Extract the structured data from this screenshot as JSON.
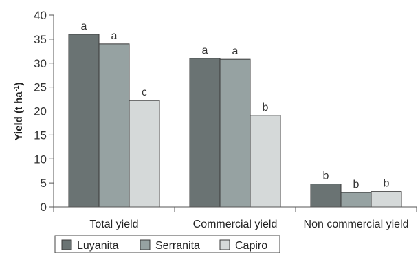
{
  "chart_data": {
    "type": "bar",
    "ylabel": "Yield (t ha",
    "ylabel_sup": "-1",
    "ylabel_close": ")",
    "ylim": [
      0,
      40
    ],
    "yticks": [
      0,
      5,
      10,
      15,
      20,
      25,
      30,
      35,
      40
    ],
    "categories": [
      "Total yield",
      "Commercial yield",
      "Non commercial yield"
    ],
    "series": [
      {
        "name": "Luyanita",
        "color": "#6a7373",
        "values": [
          36,
          31,
          4.8
        ],
        "labels": [
          "a",
          "a",
          "b"
        ]
      },
      {
        "name": "Serranita",
        "color": "#96a2a2",
        "values": [
          34,
          30.8,
          3
        ],
        "labels": [
          "a",
          "a",
          "b"
        ]
      },
      {
        "name": "Capiro",
        "color": "#d5d9d9",
        "values": [
          22.2,
          19.1,
          3.2
        ],
        "labels": [
          "c",
          "b",
          "b"
        ]
      }
    ],
    "grid": false,
    "legend": "bottom"
  }
}
